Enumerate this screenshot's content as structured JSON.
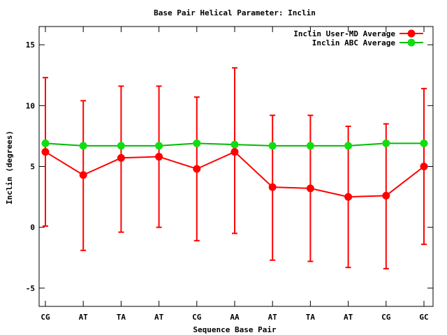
{
  "chart_data": {
    "type": "line",
    "title": "Base Pair Helical Parameter: Inclin",
    "xlabel": "Sequence Base Pair",
    "ylabel": "Inclin (degrees)",
    "categories": [
      "CG",
      "AT",
      "TA",
      "AT",
      "CG",
      "AA",
      "AT",
      "TA",
      "AT",
      "CG",
      "GC"
    ],
    "ylim": [
      -6.5,
      16.5
    ],
    "yticks": [
      -5,
      0,
      5,
      10,
      15
    ],
    "ytick_labels": [
      "-5",
      "0",
      "5",
      "10",
      "15"
    ],
    "grid": false,
    "legend_position": "top-right",
    "series": [
      {
        "name": "Inclin User-MD Average",
        "color": "#ff0000",
        "marker_color": "#ff0000",
        "values": [
          6.2,
          4.3,
          5.7,
          5.8,
          4.8,
          6.2,
          3.3,
          3.2,
          2.5,
          2.6,
          5.0
        ],
        "error_low": [
          0.1,
          -1.9,
          -0.4,
          0.0,
          -1.1,
          -0.5,
          -2.7,
          -2.8,
          -3.3,
          -3.4,
          -1.4
        ],
        "error_high": [
          12.3,
          10.4,
          11.6,
          11.6,
          10.7,
          13.1,
          9.2,
          9.2,
          8.3,
          8.5,
          11.4
        ]
      },
      {
        "name": "Inclin ABC Average",
        "color": "#00bb00",
        "marker_color": "#11dd11",
        "values": [
          6.9,
          6.7,
          6.7,
          6.7,
          6.9,
          6.8,
          6.7,
          6.7,
          6.7,
          6.9,
          6.9
        ]
      }
    ]
  }
}
